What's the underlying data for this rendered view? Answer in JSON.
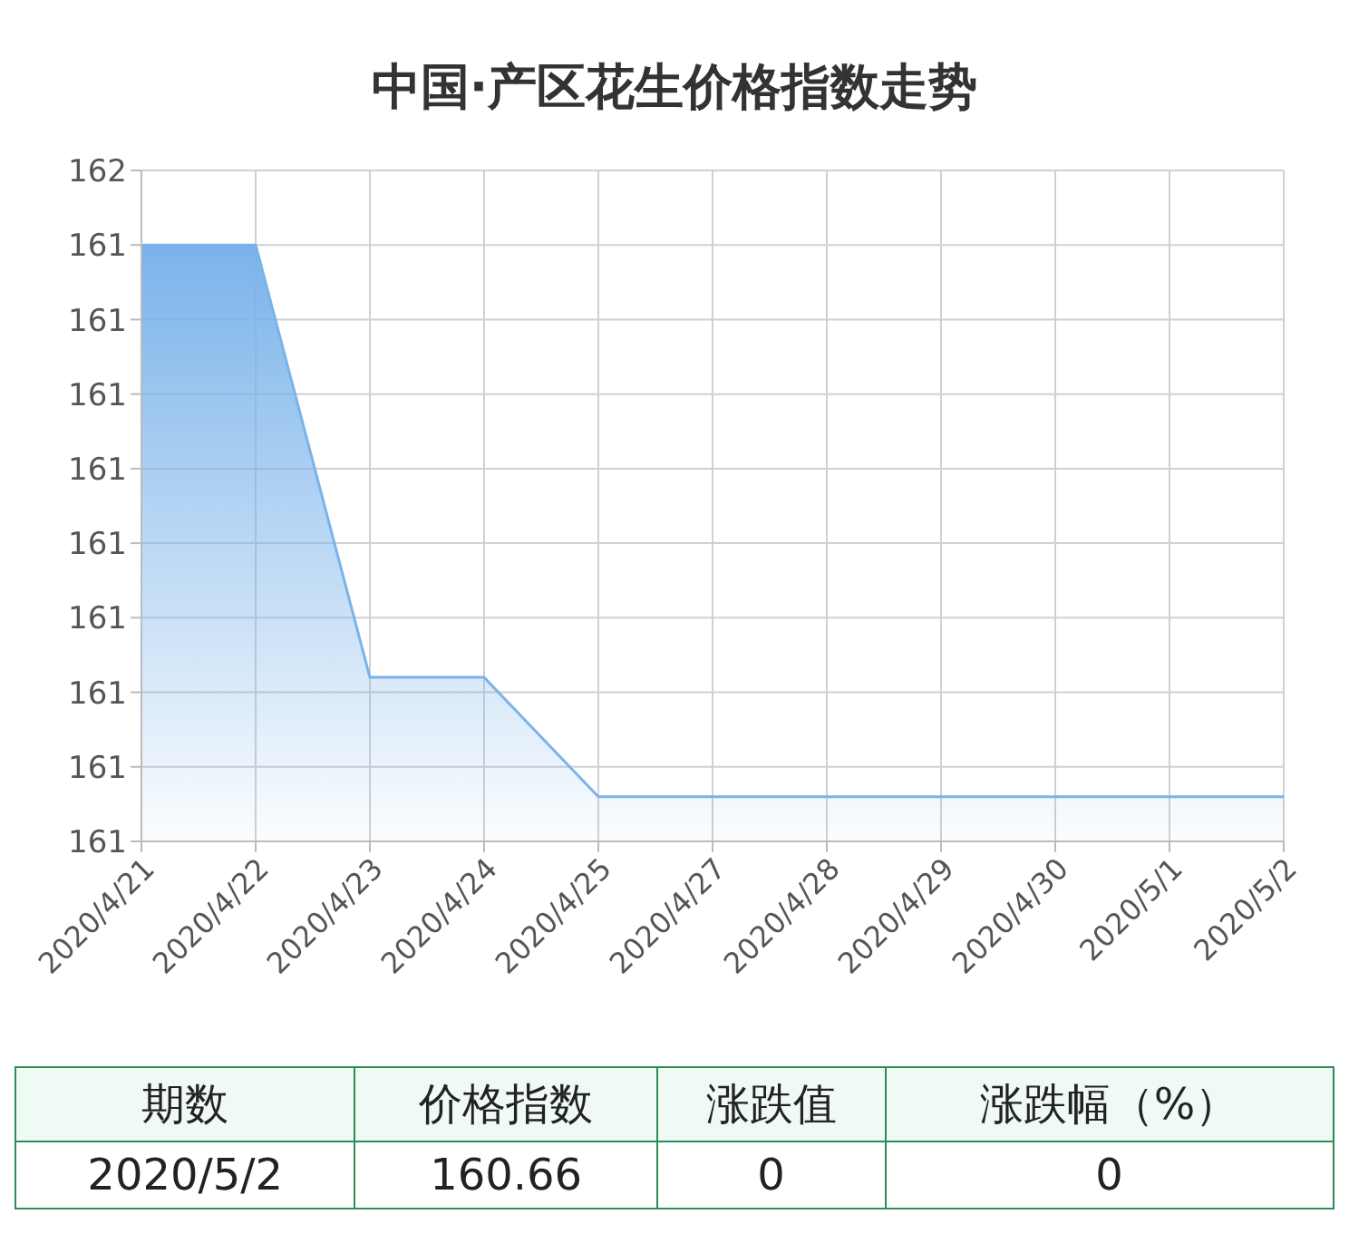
{
  "chart_data": {
    "type": "area",
    "title": "中国·产区花生价格指数走势",
    "categories": [
      "2020/4/21",
      "2020/4/22",
      "2020/4/23",
      "2020/4/24",
      "2020/4/25",
      "2020/4/27",
      "2020/4/28",
      "2020/4/29",
      "2020/4/30",
      "2020/5/1",
      "2020/5/2"
    ],
    "series": [
      {
        "color": "#7ab3ea",
        "values": [
          161.4,
          161.4,
          160.82,
          160.82,
          160.66,
          160.66,
          160.66,
          160.66,
          160.66,
          160.66,
          160.66
        ]
      }
    ],
    "ylim": [
      160.6,
      161.5
    ],
    "yticks": [
      {
        "value": 160.6,
        "label": "161"
      },
      {
        "value": 160.7,
        "label": "161"
      },
      {
        "value": 160.8,
        "label": "161"
      },
      {
        "value": 160.9,
        "label": "161"
      },
      {
        "value": 161.0,
        "label": "161"
      },
      {
        "value": 161.1,
        "label": "161"
      },
      {
        "value": 161.2,
        "label": "161"
      },
      {
        "value": 161.3,
        "label": "161"
      },
      {
        "value": 161.4,
        "label": "161"
      },
      {
        "value": 161.5,
        "label": "162"
      }
    ],
    "grid": true,
    "legend": false,
    "marker": "none",
    "annotations": [
      "期数",
      "价格指数",
      "涨跌值",
      "涨跌幅（%）",
      "2020/5/2",
      "160.66",
      "0",
      "0"
    ]
  }
}
